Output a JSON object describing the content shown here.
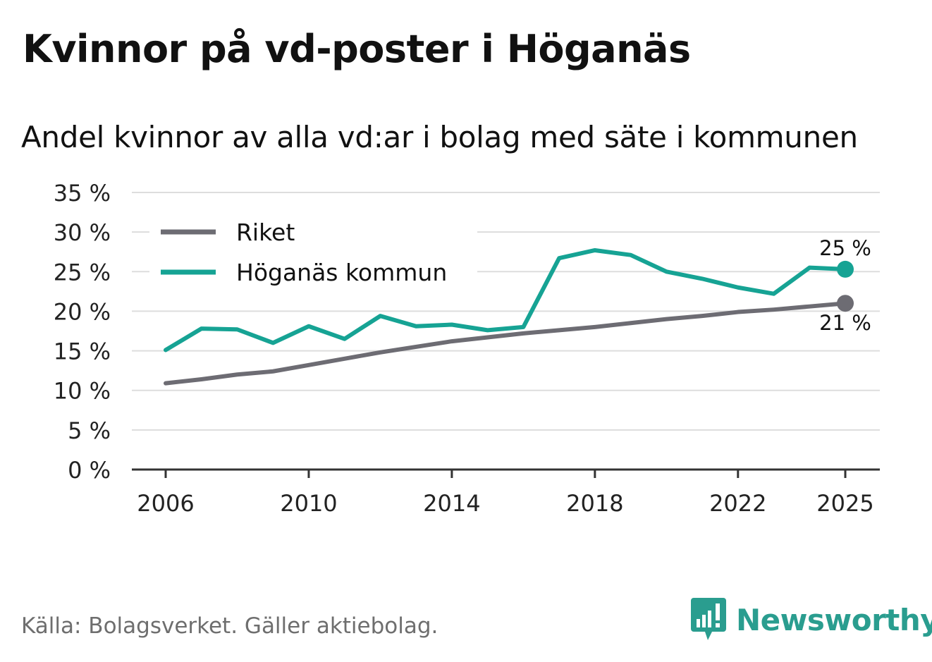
{
  "chart_data": {
    "type": "line",
    "title": "Kvinnor på vd-poster i Höganäs",
    "subtitle": "Andel kvinnor av alla vd:ar i bolag med säte i kommunen",
    "xlabel": "",
    "ylabel": "",
    "ylim": [
      0,
      35
    ],
    "yticks": [
      0,
      5,
      10,
      15,
      20,
      25,
      30,
      35
    ],
    "ytick_labels": [
      "0 %",
      "5 %",
      "10 %",
      "15 %",
      "20 %",
      "25 %",
      "30 %",
      "35 %"
    ],
    "xlim": [
      2006,
      2025
    ],
    "xticks": [
      2006,
      2010,
      2014,
      2018,
      2022,
      2025
    ],
    "xtick_labels": [
      "2006",
      "2010",
      "2014",
      "2018",
      "2022",
      "2025"
    ],
    "grid": true,
    "legend_position": "top-left",
    "x": [
      2006,
      2007,
      2008,
      2009,
      2010,
      2011,
      2012,
      2013,
      2014,
      2015,
      2016,
      2017,
      2018,
      2019,
      2020,
      2021,
      2022,
      2023,
      2024,
      2025
    ],
    "series": [
      {
        "name": "Riket",
        "color": "#6d6c73",
        "values": [
          10.9,
          11.4,
          12.0,
          12.4,
          13.2,
          14.0,
          14.8,
          15.5,
          16.2,
          16.7,
          17.2,
          17.6,
          18.0,
          18.5,
          19.0,
          19.4,
          19.9,
          20.2,
          20.6,
          21.0
        ],
        "end_label": "21 %"
      },
      {
        "name": "Höganäs kommun",
        "color": "#16a394",
        "values": [
          15.1,
          17.8,
          17.7,
          16.0,
          18.1,
          16.5,
          19.4,
          18.1,
          18.3,
          17.6,
          18.0,
          26.7,
          27.7,
          27.1,
          25.0,
          24.1,
          23.0,
          22.2,
          25.5,
          25.3
        ],
        "end_label": "25 %"
      }
    ]
  },
  "source": "Källa: Bolagsverket. Gäller aktiebolag.",
  "brand": {
    "name": "Newsworthy",
    "color": "#2a9d8f"
  }
}
